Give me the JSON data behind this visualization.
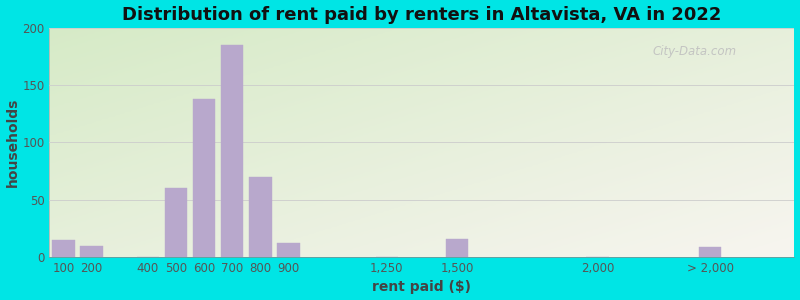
{
  "title": "Distribution of rent paid by renters in Altavista, VA in 2022",
  "xlabel": "rent paid ($)",
  "ylabel": "households",
  "bar_color": "#b8a8cc",
  "bg_outer": "#00e5e5",
  "ylim": [
    0,
    200
  ],
  "yticks": [
    0,
    50,
    100,
    150,
    200
  ],
  "categories": [
    "100",
    "200",
    "400",
    "500",
    "600",
    "700",
    "800",
    "900",
    "1,250",
    "1,500",
    "2,000",
    "> 2,000"
  ],
  "x_positions": [
    100,
    200,
    400,
    500,
    600,
    700,
    800,
    900,
    1250,
    1500,
    2000,
    2400
  ],
  "values": [
    15,
    10,
    0,
    60,
    138,
    185,
    70,
    12,
    0,
    16,
    0,
    9
  ],
  "title_fontsize": 13,
  "axis_label_fontsize": 10,
  "tick_fontsize": 8.5,
  "watermark": "City-Data.com"
}
